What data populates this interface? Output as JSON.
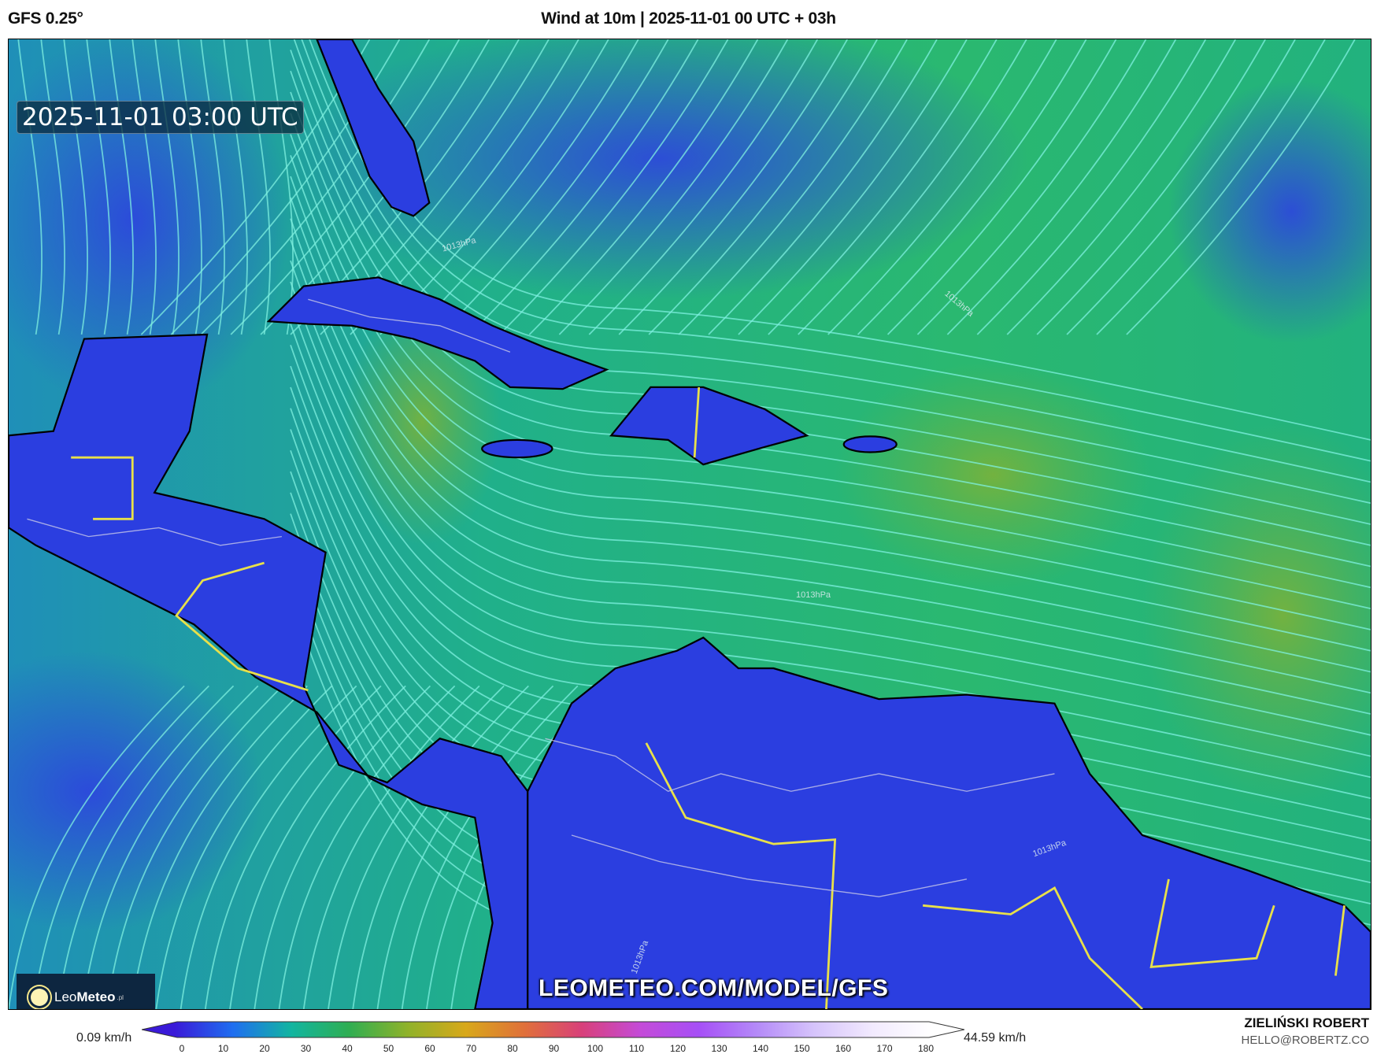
{
  "header": {
    "model": "GFS 0.25°",
    "title": "Wind at 10m | 2025-11-01 00 UTC + 03h"
  },
  "map": {
    "valid_time": "2025-11-01 03:00 UTC",
    "watermark": "LEOMETEO.COM/MODEL/GFS",
    "isobar_label": "1013hPa",
    "logo": {
      "prefix": "Leo",
      "bold": "Meteo",
      "suffix": ".pl"
    },
    "colors": {
      "ocean": "#1fae8c",
      "land_low_wind": "#2b3ee0",
      "border_country": "#e8e04a",
      "border_region": "#c8c8e8",
      "coast": "#000000",
      "streamline": "#7ff0e0"
    }
  },
  "colorbar": {
    "min_label": "0.09 km/h",
    "max_label": "44.59 km/h",
    "ticks": [
      "0",
      "10",
      "20",
      "30",
      "40",
      "50",
      "60",
      "70",
      "80",
      "90",
      "100",
      "110",
      "120",
      "130",
      "140",
      "150",
      "160",
      "170",
      "180"
    ],
    "colors": [
      "#3a1ad8",
      "#1f6ef0",
      "#12b5a0",
      "#2fae52",
      "#8fb22a",
      "#d8a81a",
      "#e0703a",
      "#d8407a",
      "#c44bd8",
      "#a64ff6",
      "#b48af8",
      "#d6c4fb",
      "#f2eafe",
      "#ffffff"
    ]
  },
  "credits": {
    "author": "ZIELIŃSKI ROBERT",
    "email": "HELLO@ROBERTZ.CO"
  }
}
